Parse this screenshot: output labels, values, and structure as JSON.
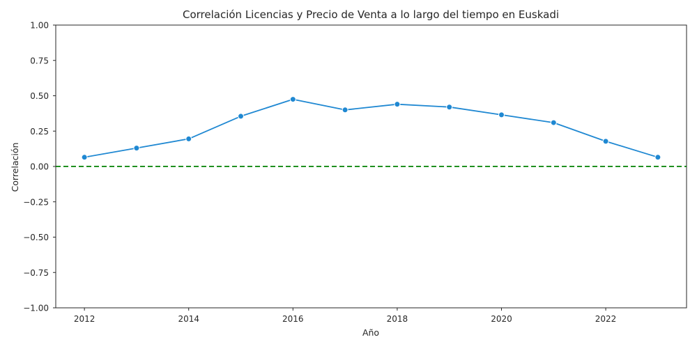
{
  "chart_data": {
    "type": "line",
    "title": "Correlación Licencias y Precio de Venta a lo largo del tiempo en Euskadi",
    "xlabel": "Año",
    "ylabel": "Correlación",
    "xlim": [
      2011.45,
      2023.55
    ],
    "ylim": [
      -1.0,
      1.0
    ],
    "x_ticks": [
      2012,
      2014,
      2016,
      2018,
      2020,
      2022
    ],
    "y_ticks": [
      1.0,
      0.75,
      0.5,
      0.25,
      0.0,
      -0.25,
      -0.5,
      -0.75,
      -1.0
    ],
    "y_tick_labels": [
      "1.00",
      "0.75",
      "0.50",
      "0.25",
      "0.00",
      "−0.25",
      "−0.50",
      "−0.75",
      "−1.00"
    ],
    "grid": false,
    "series": [
      {
        "color": "#1f88d2",
        "marker": "circle",
        "x": [
          2012,
          2013,
          2014,
          2015,
          2016,
          2017,
          2018,
          2019,
          2020,
          2021,
          2022,
          2023
        ],
        "y": [
          0.065,
          0.13,
          0.195,
          0.355,
          0.475,
          0.4,
          0.44,
          0.42,
          0.365,
          0.31,
          0.178,
          0.065
        ]
      }
    ],
    "reference_line": {
      "y": 0.0,
      "color": "#008000",
      "style": "dashed"
    }
  }
}
